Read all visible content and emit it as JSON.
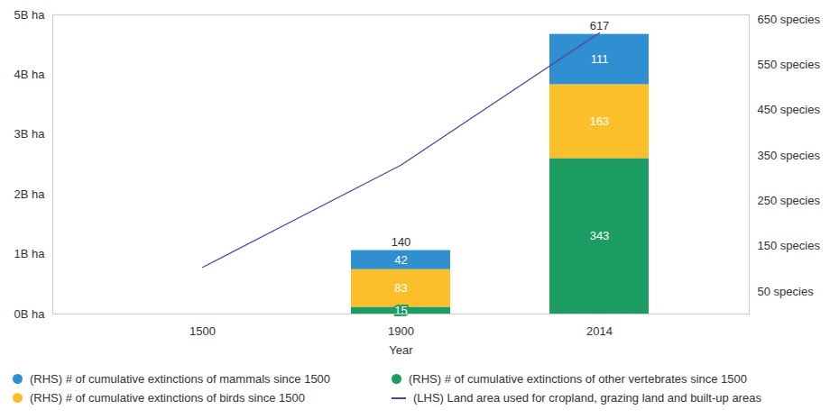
{
  "chart_data": {
    "type": "bar",
    "stacked": true,
    "data_labels": true,
    "grid": false,
    "legend": "bottom",
    "categories": [
      "1500",
      "1900",
      "2014"
    ],
    "xlabel": "Year",
    "ylim": [
      0,
      5
    ],
    "yticks": [
      {
        "value": 0,
        "label": "0B ha"
      },
      {
        "value": 1,
        "label": "1B ha"
      },
      {
        "value": 2,
        "label": "2B ha"
      },
      {
        "value": 3,
        "label": "3B ha"
      },
      {
        "value": 4,
        "label": "4B ha"
      },
      {
        "value": 5,
        "label": "5B ha"
      }
    ],
    "y2lim": [
      0,
      660
    ],
    "y2ticks": [
      {
        "value": 50,
        "label": "50 species"
      },
      {
        "value": 150,
        "label": "150 species"
      },
      {
        "value": 250,
        "label": "250 species"
      },
      {
        "value": 350,
        "label": "350 species"
      },
      {
        "value": 450,
        "label": "450 species"
      },
      {
        "value": 550,
        "label": "550 species"
      },
      {
        "value": 650,
        "label": "650 species"
      }
    ],
    "series": [
      {
        "name": "(RHS) # of cumulative extinctions of mammals since 1500",
        "color": "#2f8fd0",
        "axis": "y2",
        "values": [
          null,
          42,
          111
        ]
      },
      {
        "name": "(RHS) # of cumulative extinctions of birds since 1500",
        "color": "#fbbf2a",
        "axis": "y2",
        "values": [
          null,
          83,
          163
        ]
      },
      {
        "name": "(RHS) # of cumulative extinctions of other vertebrates since 1500",
        "color": "#1b9c62",
        "axis": "y2",
        "values": [
          null,
          15,
          343
        ]
      },
      {
        "name": "(LHS) Land area used for cropland, grazing land and built-up areas",
        "type": "line",
        "color": "#5c3d9e",
        "values": [
          0.78,
          2.49,
          4.7
        ]
      }
    ],
    "totals": [
      null,
      140,
      617
    ]
  }
}
